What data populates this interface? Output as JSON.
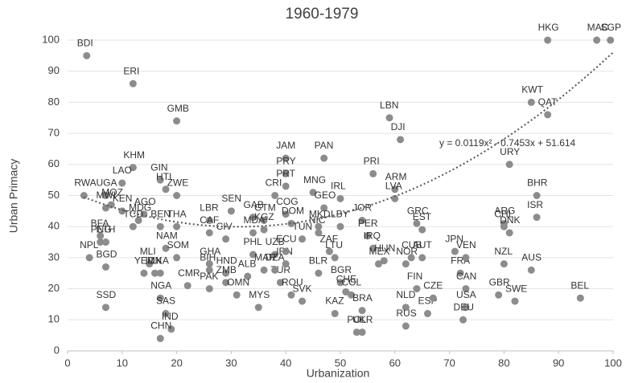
{
  "chart_data": {
    "type": "scatter",
    "title": "1960-1979",
    "x_label": "Urbanization",
    "y_label": "Urban Primacy",
    "xlim": [
      0,
      100
    ],
    "ylim": [
      0,
      100
    ],
    "xticks": [
      0,
      10,
      20,
      30,
      40,
      50,
      60,
      70,
      80,
      90,
      100
    ],
    "yticks": [
      0,
      10,
      20,
      30,
      40,
      50,
      60,
      70,
      80,
      90,
      100
    ],
    "grid": true,
    "color": "#8c8c8c",
    "trendline": {
      "coefficients": [
        0.0119,
        -0.7453,
        51.614
      ],
      "label": "y = 0.0119x² - 0.7453x + 51.614"
    },
    "point_labels": [
      "BDI",
      "ERI",
      "GMB",
      "HKG",
      "MAC",
      "SGP",
      "KWT",
      "QAT",
      "LBN",
      "DJI",
      "JAM",
      "PAN",
      "PRY",
      "PRI",
      "ARM",
      "LVA",
      "URY",
      "BHR",
      "ISR",
      "ARG",
      "CHL",
      "DNK",
      "NZL",
      "AUS",
      "GBR",
      "SWE",
      "BEL",
      "JPN",
      "FRA",
      "VEN",
      "CAN",
      "USA",
      "DEU",
      "KHM",
      "LAO",
      "UGA",
      "RWA",
      "MOZ",
      "MWI",
      "GIN",
      "HTI",
      "ZWE",
      "KEN",
      "AGO",
      "MDG",
      "TCD",
      "BFA",
      "NPL",
      "PNG",
      "ETH",
      "BGD",
      "SSD",
      "MLI",
      "YEM",
      "NAM",
      "BEN",
      "THA",
      "SOM",
      "LKA",
      "IDN",
      "CMR",
      "NGA",
      "SAS",
      "IND",
      "CHN",
      "LBR",
      "CAF",
      "CIV",
      "SEN",
      "GAB",
      "GTM",
      "CRI",
      "PRT",
      "COG",
      "MDA",
      "UZB",
      "PHL",
      "HND",
      "GHA",
      "BIH",
      "ZMB",
      "PAK",
      "ALB",
      "MAR",
      "OMN",
      "MYS",
      "TUR",
      "DZA",
      "IRN",
      "ECU",
      "ROU",
      "SVK",
      "MNG",
      "GEO",
      "IRL",
      "JOR",
      "PER",
      "IRQ",
      "HUN",
      "MEX",
      "NOR",
      "CUB",
      "AUT",
      "GRC",
      "EST",
      "BGR",
      "COL",
      "CHE",
      "BRA",
      "KAZ",
      "POL",
      "UKR",
      "NLD",
      "RUS",
      "ESP",
      "FIN",
      "CZE",
      "LTU",
      "BLR",
      "ZAF",
      "LBY",
      "NIC",
      "TUN",
      "MKD",
      "DOM",
      "KGZ"
    ],
    "x": [
      3.5,
      12,
      20,
      88,
      97,
      99.5,
      85,
      88,
      59,
      61,
      40,
      47,
      40,
      56,
      60,
      60,
      81,
      86,
      86,
      80,
      80,
      81,
      80,
      85,
      79,
      82,
      94,
      71,
      72,
      73,
      73,
      73,
      72.5,
      12,
      10,
      7,
      3,
      8,
      7,
      17,
      18,
      20,
      10,
      14,
      13,
      12,
      6,
      4,
      6,
      7,
      7,
      7,
      15,
      14,
      18,
      17,
      20,
      20,
      17,
      16,
      22,
      17,
      18,
      19,
      17,
      26,
      26,
      29,
      30,
      34,
      36,
      38,
      40,
      40,
      34,
      38,
      34,
      29,
      26,
      26,
      29,
      26,
      33,
      36,
      31,
      35,
      39,
      38,
      40,
      40,
      41,
      43,
      45,
      47,
      50,
      54,
      55,
      56,
      58,
      57,
      62,
      63,
      65,
      64,
      65,
      50,
      52,
      51,
      54,
      49,
      53,
      54,
      62,
      62,
      66,
      64,
      67,
      49,
      46,
      48,
      50,
      46,
      43,
      46,
      41,
      36
    ],
    "values": [
      95,
      86,
      74,
      100,
      100,
      100,
      80,
      76,
      75,
      68,
      62,
      62,
      57,
      57,
      52,
      49,
      60,
      50,
      43,
      41,
      40,
      38,
      28,
      26,
      18,
      16,
      17,
      32,
      25,
      30,
      20,
      14,
      10,
      59,
      54,
      50,
      50,
      47,
      46,
      55,
      52,
      50,
      45,
      44,
      42,
      40,
      37,
      30,
      35,
      35,
      27,
      14,
      28,
      25,
      33,
      40,
      40,
      30,
      25,
      25,
      21,
      17,
      12,
      7,
      4,
      42,
      38,
      36,
      45,
      43,
      42,
      50,
      53,
      44,
      38,
      31,
      31,
      25,
      28,
      26,
      22,
      20,
      24,
      26,
      18,
      14,
      22,
      26,
      28,
      32,
      18,
      16,
      51,
      46,
      49,
      42,
      37,
      33,
      29,
      28,
      28,
      30,
      30,
      41,
      39,
      22,
      18,
      19,
      13,
      12,
      6,
      6,
      14,
      8,
      12,
      20,
      17,
      30,
      25,
      32,
      40,
      38,
      36,
      40,
      41,
      39
    ]
  }
}
